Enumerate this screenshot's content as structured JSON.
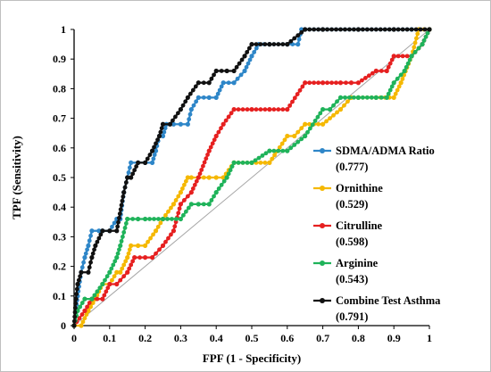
{
  "chart_data": {
    "type": "line",
    "xlabel": "FPF (1 - Specificity)",
    "ylabel": "TPF (Sensitivity)",
    "xlim": [
      0,
      1
    ],
    "ylim": [
      0,
      1
    ],
    "xticks": [
      "0",
      "0.1",
      "0.2",
      "0.3",
      "0.4",
      "0.5",
      "0.6",
      "0.7",
      "0.8",
      "0.9",
      "1"
    ],
    "yticks": [
      "0",
      "0.1",
      "0.2",
      "0.3",
      "0.4",
      "0.5",
      "0.6",
      "0.7",
      "0.8",
      "0.9",
      "1"
    ],
    "grid": false,
    "legend_position": "right",
    "reference_line": {
      "x": [
        0,
        1
      ],
      "y": [
        0,
        1
      ],
      "color": "#a6a6a6"
    },
    "series": [
      {
        "name": "SDMA/ADMA Ratio",
        "auc": "(0.777)",
        "color": "#2e86c8",
        "x": [
          0,
          0.01,
          0.02,
          0.03,
          0.04,
          0.05,
          0.07,
          0.08,
          0.1,
          0.12,
          0.13,
          0.14,
          0.15,
          0.16,
          0.18,
          0.2,
          0.22,
          0.23,
          0.24,
          0.25,
          0.26,
          0.28,
          0.3,
          0.32,
          0.33,
          0.35,
          0.38,
          0.4,
          0.42,
          0.45,
          0.48,
          0.5,
          0.52,
          0.55,
          0.6,
          0.63,
          0.64,
          0.65,
          0.7,
          0.8,
          0.9,
          0.95,
          0.97,
          1.0
        ],
        "y": [
          0,
          0.1,
          0.18,
          0.23,
          0.27,
          0.32,
          0.32,
          0.32,
          0.32,
          0.36,
          0.36,
          0.45,
          0.5,
          0.55,
          0.55,
          0.55,
          0.55,
          0.59,
          0.64,
          0.64,
          0.68,
          0.68,
          0.68,
          0.68,
          0.73,
          0.77,
          0.77,
          0.77,
          0.82,
          0.82,
          0.86,
          0.91,
          0.95,
          0.95,
          0.95,
          0.95,
          1.0,
          1.0,
          1.0,
          1.0,
          1.0,
          1.0,
          1.0,
          1.0
        ]
      },
      {
        "name": "Ornithine",
        "auc": "(0.529)",
        "color": "#f5b800",
        "x": [
          0,
          0.02,
          0.04,
          0.06,
          0.08,
          0.1,
          0.12,
          0.13,
          0.15,
          0.16,
          0.18,
          0.2,
          0.23,
          0.25,
          0.28,
          0.3,
          0.32,
          0.33,
          0.35,
          0.38,
          0.4,
          0.42,
          0.45,
          0.5,
          0.55,
          0.6,
          0.62,
          0.65,
          0.7,
          0.75,
          0.78,
          0.8,
          0.85,
          0.9,
          0.92,
          0.95,
          0.97,
          1.0
        ],
        "y": [
          0,
          0,
          0.05,
          0.09,
          0.14,
          0.14,
          0.18,
          0.18,
          0.23,
          0.27,
          0.27,
          0.27,
          0.32,
          0.36,
          0.41,
          0.45,
          0.5,
          0.5,
          0.5,
          0.5,
          0.5,
          0.5,
          0.55,
          0.55,
          0.55,
          0.64,
          0.64,
          0.68,
          0.68,
          0.73,
          0.77,
          0.77,
          0.77,
          0.77,
          0.82,
          0.91,
          1.0,
          1.0
        ]
      },
      {
        "name": "Citrulline",
        "auc": "(0.598)",
        "color": "#e62020",
        "x": [
          0,
          0.03,
          0.05,
          0.08,
          0.1,
          0.12,
          0.15,
          0.17,
          0.2,
          0.22,
          0.25,
          0.28,
          0.3,
          0.33,
          0.35,
          0.38,
          0.4,
          0.42,
          0.45,
          0.5,
          0.55,
          0.6,
          0.65,
          0.7,
          0.75,
          0.78,
          0.8,
          0.85,
          0.88,
          0.9,
          0.95,
          0.98,
          1.0
        ],
        "y": [
          0,
          0.05,
          0.09,
          0.09,
          0.14,
          0.14,
          0.18,
          0.23,
          0.23,
          0.23,
          0.27,
          0.32,
          0.41,
          0.45,
          0.5,
          0.59,
          0.64,
          0.68,
          0.73,
          0.73,
          0.73,
          0.73,
          0.82,
          0.82,
          0.82,
          0.82,
          0.82,
          0.86,
          0.86,
          0.91,
          0.91,
          0.95,
          1.0
        ]
      },
      {
        "name": "Arginine",
        "auc": "(0.543)",
        "color": "#1fb35a",
        "x": [
          0,
          0.01,
          0.03,
          0.05,
          0.08,
          0.1,
          0.12,
          0.13,
          0.15,
          0.18,
          0.2,
          0.25,
          0.3,
          0.33,
          0.35,
          0.38,
          0.4,
          0.43,
          0.45,
          0.5,
          0.55,
          0.6,
          0.65,
          0.7,
          0.72,
          0.75,
          0.8,
          0.85,
          0.88,
          0.9,
          0.93,
          0.95,
          0.98,
          1.0
        ],
        "y": [
          0,
          0.05,
          0.09,
          0.09,
          0.14,
          0.18,
          0.23,
          0.27,
          0.36,
          0.36,
          0.36,
          0.36,
          0.36,
          0.41,
          0.41,
          0.41,
          0.45,
          0.5,
          0.55,
          0.55,
          0.59,
          0.59,
          0.64,
          0.73,
          0.73,
          0.77,
          0.77,
          0.77,
          0.77,
          0.82,
          0.86,
          0.91,
          0.95,
          1.0
        ]
      },
      {
        "name": "Combine Test Asthma",
        "auc": "(0.791)",
        "color": "#111111",
        "x": [
          0,
          0.005,
          0.01,
          0.02,
          0.04,
          0.05,
          0.06,
          0.08,
          0.1,
          0.12,
          0.14,
          0.15,
          0.16,
          0.18,
          0.2,
          0.22,
          0.24,
          0.25,
          0.27,
          0.3,
          0.32,
          0.35,
          0.38,
          0.4,
          0.43,
          0.45,
          0.48,
          0.5,
          0.55,
          0.6,
          0.65,
          0.7,
          0.8,
          0.9,
          1.0
        ],
        "y": [
          0,
          0.09,
          0.14,
          0.18,
          0.18,
          0.23,
          0.27,
          0.32,
          0.32,
          0.32,
          0.45,
          0.5,
          0.5,
          0.55,
          0.55,
          0.59,
          0.64,
          0.68,
          0.68,
          0.73,
          0.77,
          0.82,
          0.82,
          0.86,
          0.86,
          0.86,
          0.91,
          0.95,
          0.95,
          0.95,
          1.0,
          1.0,
          1.0,
          1.0,
          1.0
        ]
      }
    ]
  }
}
